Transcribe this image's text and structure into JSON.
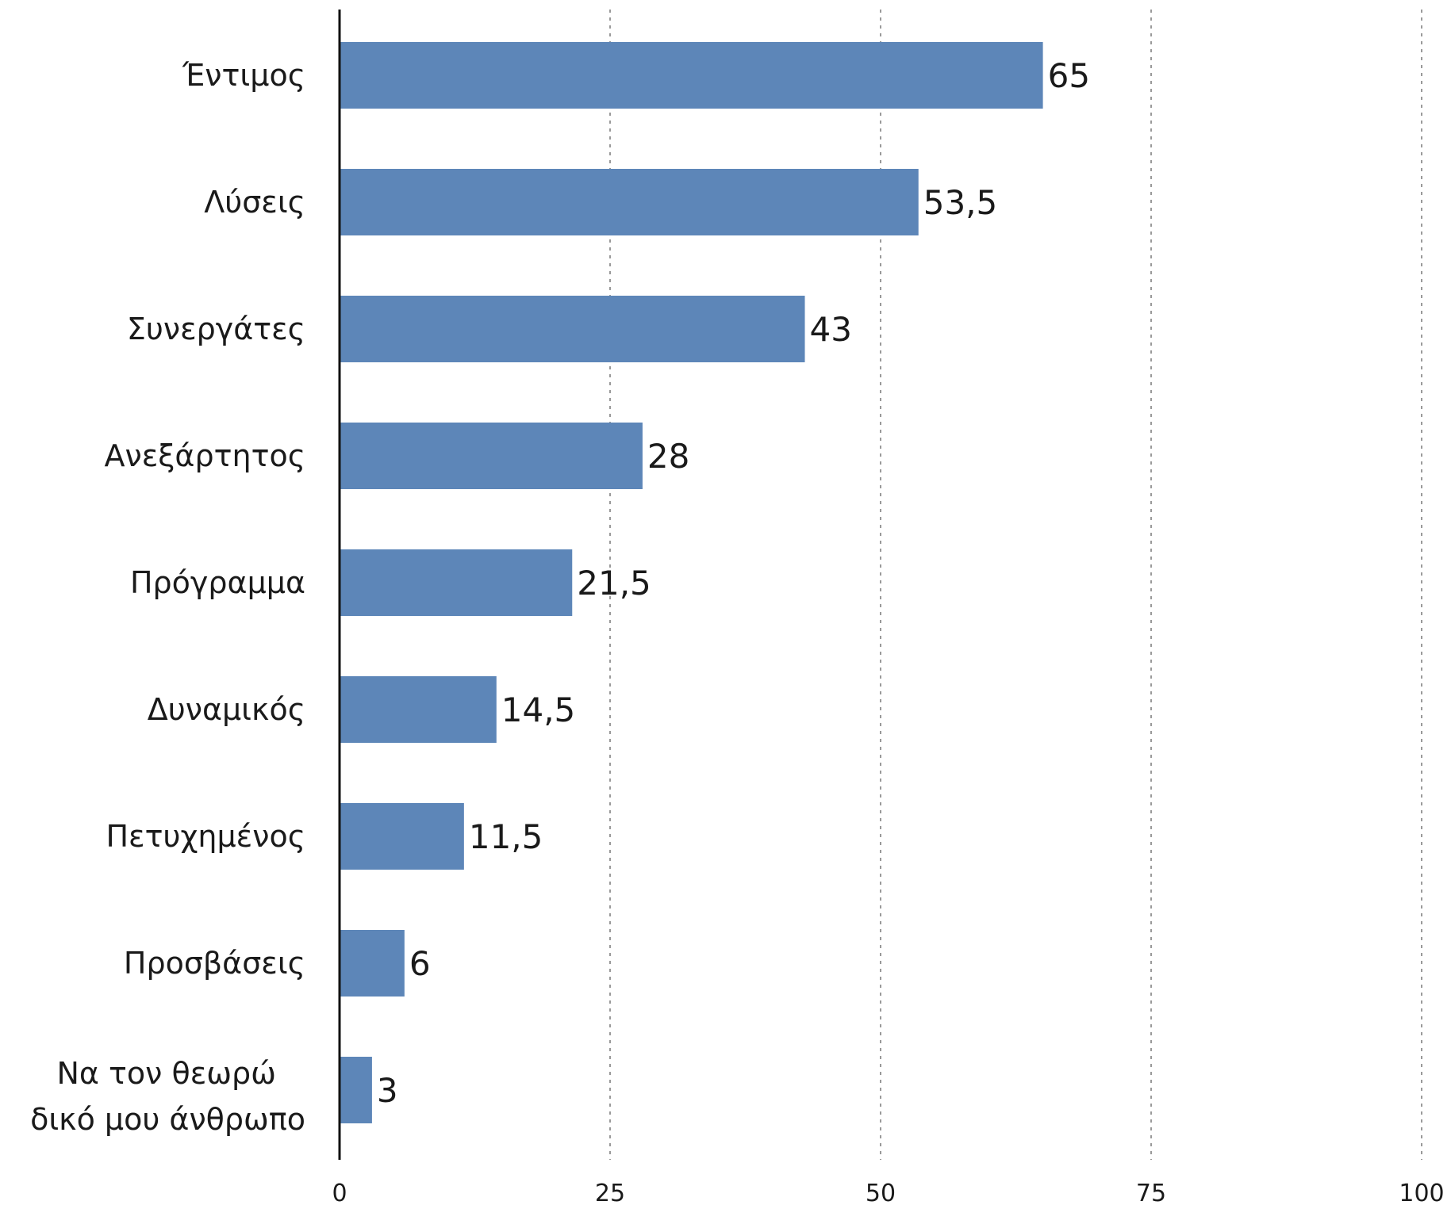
{
  "chart_data": {
    "type": "bar",
    "orientation": "horizontal",
    "categories": [
      "Έντιμος",
      "Λύσεις",
      "Συνεργάτες",
      "Ανεξάρτητος",
      "Πρόγραμμα",
      "Δυναμικός",
      "Πετυχημένος",
      "Προσβάσεις",
      "Να τον θεωρώ δικό μου άνθρωπο"
    ],
    "values": [
      65,
      53.5,
      43,
      28,
      21.5,
      14.5,
      11.5,
      6,
      3
    ],
    "value_labels": [
      "65",
      "53,5",
      "43",
      "28",
      "21,5",
      "14,5",
      "11,5",
      "6",
      "3"
    ],
    "xlim": [
      0,
      100
    ],
    "xticks": [
      0,
      25,
      50,
      75,
      100
    ],
    "grid": "vertical-dotted",
    "bar_color": "#5d86b8",
    "title": "",
    "xlabel": "",
    "ylabel": ""
  }
}
